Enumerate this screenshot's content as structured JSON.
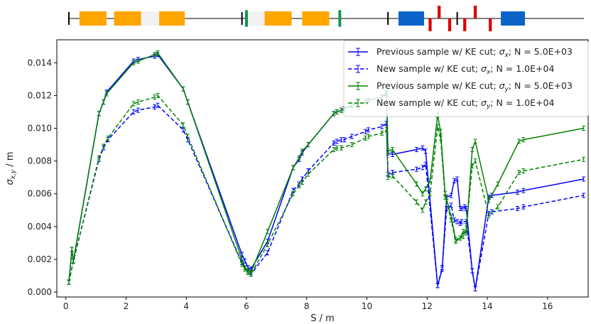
{
  "chart_data": {
    "type": "line",
    "xlabel": "S / m",
    "ylabel": "σx,y / m",
    "ylabel_main": "σ",
    "ylabel_sub": "x,y",
    "ylabel_unit": " / m",
    "xlim": [
      -0.3,
      17.35
    ],
    "ylim": [
      -0.0003,
      0.0154
    ],
    "xticks": [
      0,
      2,
      4,
      6,
      8,
      10,
      12,
      14,
      16
    ],
    "xtick_labels": [
      "0",
      "2",
      "4",
      "6",
      "8",
      "10",
      "12",
      "14",
      "16"
    ],
    "yticks": [
      0.0,
      0.002,
      0.004,
      0.006,
      0.008,
      0.01,
      0.012,
      0.014
    ],
    "ytick_labels": [
      "0.000",
      "0.002",
      "0.004",
      "0.006",
      "0.008",
      "0.010",
      "0.012",
      "0.014"
    ],
    "grid": false,
    "legend_position": "top-right",
    "series": [
      {
        "label_main": "Previous sample w/ KE cut; ",
        "label_sym": "σ",
        "label_sub": "x",
        "label_tail": "; N = 5.0E+03",
        "color": "#0000ff",
        "dash": "solid",
        "points": [
          [
            0.1,
            0.0006
          ],
          [
            0.2,
            0.0026
          ],
          [
            0.25,
            0.0019
          ],
          [
            1.1,
            0.0109
          ],
          [
            1.25,
            0.0116
          ],
          [
            1.35,
            0.0122
          ],
          [
            2.25,
            0.0141
          ],
          [
            2.4,
            0.0142
          ],
          [
            2.95,
            0.0144
          ],
          [
            3.05,
            0.0145
          ],
          [
            3.9,
            0.0124
          ],
          [
            4.05,
            0.0116
          ],
          [
            5.85,
            0.0023
          ],
          [
            5.95,
            0.0019
          ],
          [
            6.05,
            0.0015
          ],
          [
            6.15,
            0.0014
          ],
          [
            6.7,
            0.0031
          ],
          [
            7.55,
            0.0076
          ],
          [
            7.75,
            0.0081
          ],
          [
            7.85,
            0.0085
          ],
          [
            8.05,
            0.009
          ],
          [
            8.9,
            0.0109
          ],
          [
            9.0,
            0.011
          ],
          [
            9.15,
            0.0111
          ],
          [
            9.25,
            0.0112
          ],
          [
            9.5,
            0.0114
          ],
          [
            9.95,
            0.0116
          ],
          [
            10.05,
            0.0117
          ],
          [
            10.5,
            0.0119
          ],
          [
            10.65,
            0.0121
          ],
          [
            10.7,
            0.0085
          ],
          [
            10.85,
            0.0084
          ],
          [
            11.65,
            0.0087
          ],
          [
            11.85,
            0.0088
          ],
          [
            11.95,
            0.0086
          ],
          [
            12.35,
            0.0004
          ],
          [
            12.5,
            0.0014
          ],
          [
            12.65,
            0.0058
          ],
          [
            12.8,
            0.0059
          ],
          [
            12.9,
            0.0068
          ],
          [
            13.0,
            0.0069
          ],
          [
            13.1,
            0.0051
          ],
          [
            13.15,
            0.0051
          ],
          [
            13.25,
            0.0052
          ],
          [
            13.3,
            0.0051
          ],
          [
            13.5,
            0.0013
          ],
          [
            13.6,
            0.0002
          ],
          [
            14.05,
            0.0058
          ],
          [
            14.15,
            0.0059
          ],
          [
            15.0,
            0.0061
          ],
          [
            15.2,
            0.0062
          ],
          [
            17.2,
            0.0069
          ]
        ]
      },
      {
        "label_main": "New sample w/ KE cut; ",
        "label_sym": "σ",
        "label_sub": "x",
        "label_tail": "; N = 1.0E+04",
        "color": "#0000ff",
        "dash": "dashed",
        "points": [
          [
            0.1,
            0.0006
          ],
          [
            0.25,
            0.0019
          ],
          [
            1.1,
            0.0081
          ],
          [
            1.25,
            0.0088
          ],
          [
            1.4,
            0.0093
          ],
          [
            2.25,
            0.011
          ],
          [
            2.4,
            0.0111
          ],
          [
            2.95,
            0.0113
          ],
          [
            3.05,
            0.0114
          ],
          [
            3.9,
            0.0099
          ],
          [
            4.05,
            0.0093
          ],
          [
            5.85,
            0.0018
          ],
          [
            5.95,
            0.0015
          ],
          [
            6.05,
            0.0012
          ],
          [
            6.15,
            0.0011
          ],
          [
            6.7,
            0.0024
          ],
          [
            7.55,
            0.0062
          ],
          [
            7.75,
            0.0066
          ],
          [
            7.85,
            0.0069
          ],
          [
            8.05,
            0.0074
          ],
          [
            8.9,
            0.0091
          ],
          [
            9.0,
            0.0092
          ],
          [
            9.15,
            0.0093
          ],
          [
            9.25,
            0.0093
          ],
          [
            9.5,
            0.0095
          ],
          [
            9.95,
            0.0098
          ],
          [
            10.05,
            0.0099
          ],
          [
            10.5,
            0.0101
          ],
          [
            10.65,
            0.0103
          ],
          [
            10.7,
            0.0072
          ],
          [
            10.85,
            0.0073
          ],
          [
            11.65,
            0.0075
          ],
          [
            11.85,
            0.0076
          ],
          [
            11.95,
            0.0078
          ],
          [
            12.35,
            0.0004
          ],
          [
            12.5,
            0.0015
          ],
          [
            12.65,
            0.0051
          ],
          [
            12.8,
            0.0053
          ],
          [
            12.9,
            0.0044
          ],
          [
            13.0,
            0.0043
          ],
          [
            13.1,
            0.0042
          ],
          [
            13.15,
            0.0043
          ],
          [
            13.3,
            0.0043
          ],
          [
            13.5,
            0.0013
          ],
          [
            13.6,
            0.0002
          ],
          [
            14.05,
            0.0048
          ],
          [
            14.15,
            0.0049
          ],
          [
            15.0,
            0.0051
          ],
          [
            15.2,
            0.0052
          ],
          [
            17.2,
            0.0059
          ]
        ]
      },
      {
        "label_main": "Previous sample w/ KE cut; ",
        "label_sym": "σ",
        "label_sub": "y",
        "label_tail": "; N = 5.0E+03",
        "color": "#008000",
        "dash": "solid",
        "points": [
          [
            0.1,
            0.0006
          ],
          [
            0.2,
            0.0026
          ],
          [
            0.25,
            0.0019
          ],
          [
            1.1,
            0.0109
          ],
          [
            1.25,
            0.0116
          ],
          [
            1.35,
            0.0121
          ],
          [
            2.25,
            0.014
          ],
          [
            2.4,
            0.0141
          ],
          [
            2.95,
            0.0145
          ],
          [
            3.05,
            0.0146
          ],
          [
            3.9,
            0.0124
          ],
          [
            4.05,
            0.0116
          ],
          [
            5.85,
            0.002
          ],
          [
            5.95,
            0.0015
          ],
          [
            6.05,
            0.0013
          ],
          [
            6.15,
            0.0012
          ],
          [
            6.7,
            0.0037
          ],
          [
            7.55,
            0.0076
          ],
          [
            7.75,
            0.0082
          ],
          [
            7.85,
            0.0086
          ],
          [
            8.05,
            0.009
          ],
          [
            8.9,
            0.0109
          ],
          [
            9.0,
            0.011
          ],
          [
            9.15,
            0.0111
          ],
          [
            9.5,
            0.0114
          ],
          [
            9.95,
            0.0116
          ],
          [
            10.05,
            0.0117
          ],
          [
            10.5,
            0.0119
          ],
          [
            10.65,
            0.0122
          ],
          [
            10.7,
            0.0086
          ],
          [
            10.85,
            0.0087
          ],
          [
            11.65,
            0.0066
          ],
          [
            11.85,
            0.006
          ],
          [
            11.95,
            0.0063
          ],
          [
            12.1,
            0.0068
          ],
          [
            12.35,
            0.0108
          ],
          [
            12.45,
            0.0098
          ],
          [
            12.6,
            0.006
          ],
          [
            12.8,
            0.0046
          ],
          [
            12.95,
            0.0032
          ],
          [
            13.1,
            0.0033
          ],
          [
            13.2,
            0.0037
          ],
          [
            13.3,
            0.0036
          ],
          [
            13.5,
            0.0087
          ],
          [
            13.6,
            0.0092
          ],
          [
            14.05,
            0.0056
          ],
          [
            14.35,
            0.0066
          ],
          [
            15.05,
            0.0092
          ],
          [
            15.2,
            0.0093
          ],
          [
            17.2,
            0.01
          ]
        ]
      },
      {
        "label_main": "New sample w/ KE cut; ",
        "label_sym": "σ",
        "label_sub": "y",
        "label_tail": "; N = 1.0E+04",
        "color": "#008000",
        "dash": "dashed",
        "points": [
          [
            0.1,
            0.0006
          ],
          [
            0.25,
            0.0019
          ],
          [
            1.1,
            0.0082
          ],
          [
            1.25,
            0.0089
          ],
          [
            1.4,
            0.0094
          ],
          [
            2.25,
            0.0115
          ],
          [
            2.4,
            0.0116
          ],
          [
            2.95,
            0.0119
          ],
          [
            3.05,
            0.012
          ],
          [
            3.9,
            0.0102
          ],
          [
            4.05,
            0.0095
          ],
          [
            5.85,
            0.0017
          ],
          [
            5.95,
            0.0014
          ],
          [
            6.05,
            0.0012
          ],
          [
            6.15,
            0.0011
          ],
          [
            6.7,
            0.0029
          ],
          [
            7.55,
            0.006
          ],
          [
            7.75,
            0.0065
          ],
          [
            7.85,
            0.0067
          ],
          [
            8.05,
            0.0072
          ],
          [
            8.9,
            0.0087
          ],
          [
            9.0,
            0.0088
          ],
          [
            9.15,
            0.0088
          ],
          [
            9.5,
            0.009
          ],
          [
            9.95,
            0.0094
          ],
          [
            10.05,
            0.0095
          ],
          [
            10.5,
            0.0097
          ],
          [
            10.65,
            0.0099
          ],
          [
            10.7,
            0.007
          ],
          [
            10.85,
            0.0071
          ],
          [
            11.65,
            0.0055
          ],
          [
            11.85,
            0.005
          ],
          [
            11.95,
            0.0055
          ],
          [
            12.1,
            0.006
          ],
          [
            12.35,
            0.0101
          ],
          [
            12.45,
            0.0094
          ],
          [
            12.6,
            0.0058
          ],
          [
            12.8,
            0.0044
          ],
          [
            12.95,
            0.0031
          ],
          [
            13.1,
            0.0033
          ],
          [
            13.2,
            0.0034
          ],
          [
            13.3,
            0.0039
          ],
          [
            13.5,
            0.0077
          ],
          [
            13.6,
            0.008
          ],
          [
            14.05,
            0.0047
          ],
          [
            14.35,
            0.0052
          ],
          [
            15.05,
            0.0073
          ],
          [
            15.2,
            0.0074
          ],
          [
            17.2,
            0.0081
          ]
        ]
      }
    ]
  },
  "lattice": {
    "elements": [
      {
        "kind": "marker",
        "s0": 0.1,
        "s1": 0.1
      },
      {
        "kind": "quad",
        "s0": 0.45,
        "s1": 1.35
      },
      {
        "kind": "quad",
        "s0": 1.6,
        "s1": 2.5
      },
      {
        "kind": "gap",
        "s0": 2.5,
        "s1": 3.1
      },
      {
        "kind": "quad",
        "s0": 3.1,
        "s1": 3.95
      },
      {
        "kind": "marker",
        "s0": 5.85,
        "s1": 5.85
      },
      {
        "kind": "corr",
        "s0": 6.0,
        "s1": 6.0
      },
      {
        "kind": "gap",
        "s0": 6.05,
        "s1": 6.6
      },
      {
        "kind": "quad",
        "s0": 6.6,
        "s1": 7.5
      },
      {
        "kind": "quad",
        "s0": 7.85,
        "s1": 8.75
      },
      {
        "kind": "corr",
        "s0": 9.1,
        "s1": 9.1
      },
      {
        "kind": "marker",
        "s0": 10.7,
        "s1": 10.7
      },
      {
        "kind": "dipole",
        "s0": 11.05,
        "s1": 11.9
      },
      {
        "kind": "kick_up",
        "s0": 12.35,
        "s1": 12.45
      },
      {
        "kind": "kick_down",
        "s0": 12.05,
        "s1": 12.15
      },
      {
        "kind": "kick_down",
        "s0": 12.7,
        "s1": 12.8
      },
      {
        "kind": "marker",
        "s0": 13.0,
        "s1": 13.0
      },
      {
        "kind": "kick_down",
        "s0": 13.2,
        "s1": 13.3
      },
      {
        "kind": "kick_up",
        "s0": 13.55,
        "s1": 13.65
      },
      {
        "kind": "kick_down",
        "s0": 14.05,
        "s1": 14.15
      },
      {
        "kind": "dipole",
        "s0": 14.45,
        "s1": 15.25
      }
    ],
    "colors": {
      "quad": "#ffa500",
      "dipole": "#0a64c8",
      "kick": "#dc0000",
      "corr": "#149650",
      "marker": "#000000",
      "gap": "#f2f2f2"
    }
  }
}
